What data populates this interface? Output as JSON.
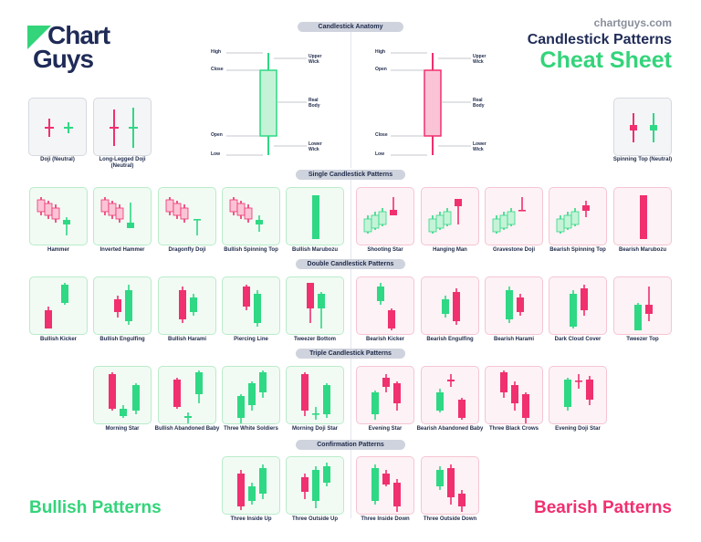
{
  "brand": {
    "logo_line1": "Chart",
    "logo_line2": "Guys",
    "site": "chartguys.com",
    "title_line1": "Candlestick Patterns",
    "title_line2": "Cheat Sheet"
  },
  "sections": {
    "anatomy": "Candlestick Anatomy",
    "single": "Single Candlestick Patterns",
    "double": "Double Candlestick Patterns",
    "triple": "Triple Candlestick Patterns",
    "confirmation": "Confirmation Patterns"
  },
  "anatomy": {
    "bull": {
      "high": "High",
      "close": "Close",
      "open": "Open",
      "low": "Low",
      "upper": "Upper Wick",
      "body": "Real Body",
      "lower": "Lower Wick"
    },
    "bear": {
      "high": "High",
      "open": "Open",
      "close": "Close",
      "low": "Low",
      "upper": "Upper Wick",
      "body": "Real Body",
      "lower": "Lower Wick"
    }
  },
  "neutral": {
    "doji": "Doji (Neutral)",
    "long_legged": "Long-Legged Doji (Neutral)",
    "spinning": "Spinning Top (Neutral)"
  },
  "single": [
    "Hammer",
    "Inverted Hammer",
    "Dragonfly Doji",
    "Bullish Spinning Top",
    "Bullish Marubozu",
    "Shooting Star",
    "Hanging Man",
    "Gravestone Doji",
    "Bearish Spinning Top",
    "Bearish Marubozu"
  ],
  "double": [
    "Bullish Kicker",
    "Bullish Engulfing",
    "Bullish Harami",
    "Piercing Line",
    "Tweezer Bottom",
    "Bearish Kicker",
    "Bearish Engulfing",
    "Bearish Harami",
    "Dark Cloud Cover",
    "Tweezer Top"
  ],
  "triple": [
    "Morning Star",
    "Bullish Abandoned Baby",
    "Three White Soldiers",
    "Morning Doji Star",
    "Evening Star",
    "Bearish Abandoned Baby",
    "Three Black Crows",
    "Evening Doji Star"
  ],
  "confirmation": [
    "Three Inside Up",
    "Three Outside Up",
    "Three Inside Down",
    "Three Outside Down"
  ],
  "footer": {
    "bullish": "Bullish Patterns",
    "bearish": "Bearish Patterns"
  },
  "colors": {
    "bull": "#2fd884",
    "bear": "#f0306f",
    "navy": "#1f2b57",
    "bull_bg": "#f1fbf4",
    "bear_bg": "#fdf2f5"
  }
}
